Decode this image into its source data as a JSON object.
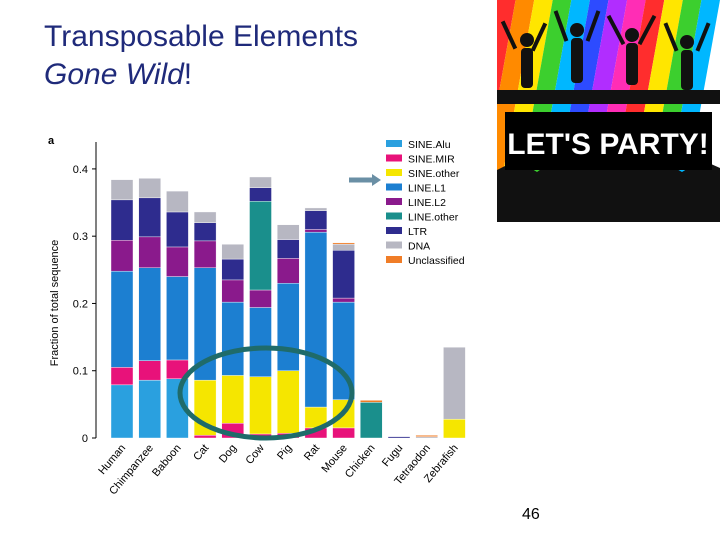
{
  "slide": {
    "title_line1": "Transposable Elements",
    "title_line2_italic": "Gone Wild",
    "title_line2_suffix": "!",
    "slide_number": "46"
  },
  "image": {
    "banner_text": "LET'S PARTY!",
    "stripe_colors": [
      "#ff2d2d",
      "#ff8a00",
      "#ffe600",
      "#3ccf2e",
      "#00b7ff",
      "#2d4bff",
      "#b12dff",
      "#ff2db5",
      "#ff2d2d",
      "#ffe600",
      "#3ccf2e",
      "#00b7ff"
    ]
  },
  "chart_data": {
    "type": "bar",
    "panel_label": "a",
    "ylabel": "Fraction of total sequence",
    "ylim": [
      0,
      0.44
    ],
    "yticks": [
      0,
      0.1,
      0.2,
      0.3,
      0.4
    ],
    "ytick_labels": [
      "0",
      "0.1",
      "0.2",
      "0.3",
      "0.4"
    ],
    "stacked": true,
    "categories": [
      "Human",
      "Chimpanzee",
      "Baboon",
      "Cat",
      "Dog",
      "Cow",
      "Pig",
      "Rat",
      "Mouse",
      "Chicken",
      "Fugu",
      "Tetraodon",
      "Zebrafish"
    ],
    "series": [
      {
        "name": "SINE.Alu",
        "color": "#2aa0df",
        "values": [
          0.079,
          0.086,
          0.088,
          0.0,
          0.0,
          0.0,
          0.0,
          0.0,
          0.0,
          0.0,
          0.0,
          0.0,
          0.0
        ]
      },
      {
        "name": "SINE.MIR",
        "color": "#e8127a",
        "values": [
          0.026,
          0.029,
          0.028,
          0.004,
          0.022,
          0.006,
          0.007,
          0.015,
          0.015,
          0.0,
          0.0,
          0.0,
          0.0
        ]
      },
      {
        "name": "SINE.other",
        "color": "#f5e600",
        "values": [
          0.0,
          0.0,
          0.0,
          0.082,
          0.071,
          0.085,
          0.093,
          0.031,
          0.042,
          0.0,
          0.0,
          0.0,
          0.028
        ]
      },
      {
        "name": "LINE.L1",
        "color": "#1c7fd1",
        "values": [
          0.143,
          0.138,
          0.124,
          0.167,
          0.109,
          0.103,
          0.13,
          0.26,
          0.145,
          0.0,
          0.0,
          0.0,
          0.0
        ]
      },
      {
        "name": "LINE.L2",
        "color": "#8a1a8c",
        "values": [
          0.046,
          0.046,
          0.044,
          0.04,
          0.033,
          0.026,
          0.037,
          0.004,
          0.006,
          0.0,
          0.0,
          0.0,
          0.0
        ]
      },
      {
        "name": "LINE.other",
        "color": "#1a8f8c",
        "values": [
          0.0,
          0.0,
          0.0,
          0.0,
          0.0,
          0.132,
          0.0,
          0.0,
          0.0,
          0.053,
          0.0,
          0.0,
          0.0
        ]
      },
      {
        "name": "LTR",
        "color": "#2e2c8e",
        "values": [
          0.06,
          0.058,
          0.052,
          0.027,
          0.031,
          0.02,
          0.028,
          0.028,
          0.071,
          0.0,
          0.002,
          0.0,
          0.0
        ]
      },
      {
        "name": "DNA",
        "color": "#b7b7c2",
        "values": [
          0.03,
          0.029,
          0.031,
          0.016,
          0.022,
          0.016,
          0.022,
          0.004,
          0.009,
          0.0,
          0.0,
          0.002,
          0.107
        ]
      },
      {
        "name": "Unclassified",
        "color": "#f07d27",
        "values": [
          0.0,
          0.0,
          0.0,
          0.0,
          0.0,
          0.0,
          0.0,
          0.0,
          0.002,
          0.003,
          0.0,
          0.002,
          0.0
        ]
      }
    ],
    "legend_position": "top-right",
    "grid": false
  }
}
